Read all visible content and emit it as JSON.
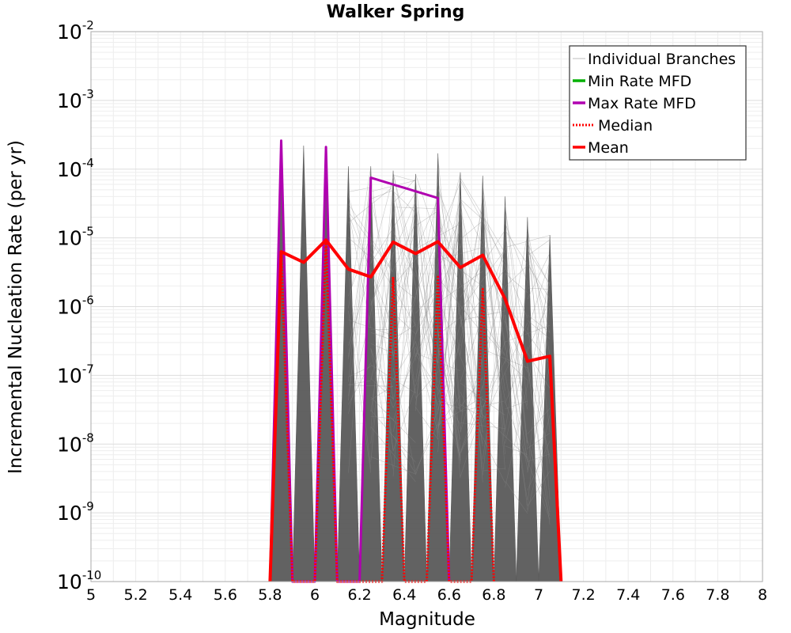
{
  "chart_data": {
    "type": "line",
    "title": "Walker Spring",
    "xlabel": "Magnitude",
    "ylabel": "Incremental Nucleation Rate (per yr)",
    "xlim": [
      5,
      8
    ],
    "ylim": [
      1e-10,
      0.01
    ],
    "yscale": "log",
    "grid": true,
    "legend_position": "top-right",
    "x_ticks": [
      "5",
      "5.2",
      "5.4",
      "5.6",
      "5.8",
      "6",
      "6.2",
      "6.4",
      "6.6",
      "6.8",
      "7",
      "7.2",
      "7.4",
      "7.6",
      "7.8",
      "8"
    ],
    "y_ticks": [
      {
        "base": "10",
        "exp": "-10"
      },
      {
        "base": "10",
        "exp": "-9"
      },
      {
        "base": "10",
        "exp": "-8"
      },
      {
        "base": "10",
        "exp": "-7"
      },
      {
        "base": "10",
        "exp": "-6"
      },
      {
        "base": "10",
        "exp": "-5"
      },
      {
        "base": "10",
        "exp": "-4"
      },
      {
        "base": "10",
        "exp": "-3"
      },
      {
        "base": "10",
        "exp": "-2"
      }
    ],
    "legend": [
      {
        "label": "Individual Branches",
        "color": "#c8c8c8",
        "style": "solid-thin"
      },
      {
        "label": "Min Rate MFD",
        "color": "#00b000",
        "style": "solid"
      },
      {
        "label": "Max Rate MFD",
        "color": "#b000b0",
        "style": "solid"
      },
      {
        "label": "Median",
        "color": "#ff0000",
        "style": "dotted"
      },
      {
        "label": "Mean",
        "color": "#ff0000",
        "style": "solid"
      }
    ],
    "spikes": {
      "x": [
        5.85,
        5.95,
        6.05,
        6.15,
        6.25,
        6.35,
        6.45,
        6.55,
        6.65,
        6.75,
        6.85,
        6.95,
        7.05
      ],
      "max": [
        0.00026,
        0.00022,
        0.00021,
        0.00011,
        0.00011,
        9.5e-05,
        8.5e-05,
        0.00017,
        9e-05,
        8e-05,
        4e-05,
        2e-05,
        1.1e-05
      ]
    },
    "series": [
      {
        "name": "Max Rate MFD",
        "color": "#b000b0",
        "x": [
          5.8,
          5.85,
          5.9,
          6.0,
          6.05,
          6.1,
          6.2,
          6.25,
          6.55,
          6.6
        ],
        "y": [
          1e-10,
          0.00026,
          1e-10,
          1e-10,
          0.00021,
          1e-10,
          1e-10,
          7.5e-05,
          3.8e-05,
          1e-10
        ]
      },
      {
        "name": "Median",
        "color": "#ff0000",
        "x": [
          5.8,
          5.85,
          5.9,
          6.0,
          6.05,
          6.1,
          6.3,
          6.35,
          6.4,
          6.5,
          6.55,
          6.6,
          6.7,
          6.75,
          6.8
        ],
        "y": [
          1e-10,
          6e-06,
          1e-10,
          1e-10,
          9e-06,
          1e-10,
          1e-10,
          2.7e-06,
          1e-10,
          1e-10,
          2.7e-06,
          1e-10,
          1e-10,
          1.8e-06,
          1e-10
        ]
      },
      {
        "name": "Mean",
        "color": "#ff0000",
        "x": [
          5.8,
          5.85,
          5.95,
          6.05,
          6.15,
          6.25,
          6.35,
          6.45,
          6.55,
          6.65,
          6.75,
          6.85,
          6.95,
          7.05,
          7.1
        ],
        "y": [
          1e-10,
          6.3e-06,
          4.4e-06,
          9.3e-06,
          3.5e-06,
          2.7e-06,
          8.7e-06,
          5.9e-06,
          8.8e-06,
          3.7e-06,
          5.6e-06,
          1.3e-06,
          1.6e-07,
          1.9e-07,
          1e-10
        ]
      }
    ]
  }
}
